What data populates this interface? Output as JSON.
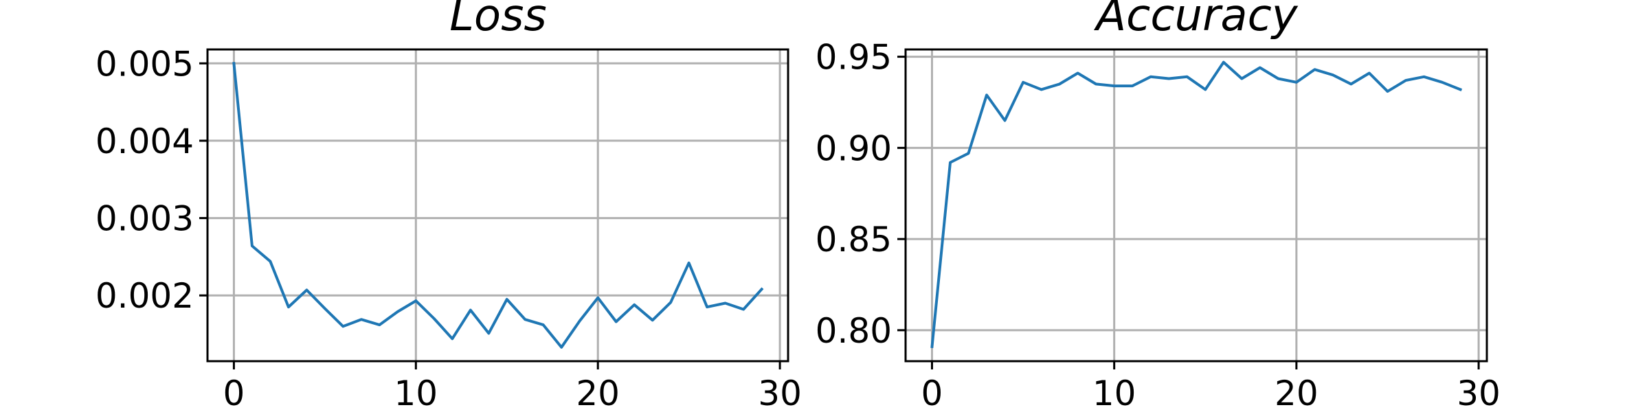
{
  "chart_data": [
    {
      "type": "line",
      "title": "Loss",
      "xlabel": "",
      "ylabel": "",
      "xlim": [
        -1.45,
        30.45
      ],
      "ylim": [
        0.00115,
        0.00518
      ],
      "xticks": [
        0,
        10,
        20,
        30
      ],
      "xtick_labels": [
        "0",
        "10",
        "20",
        "30"
      ],
      "yticks": [
        0.002,
        0.003,
        0.004,
        0.005
      ],
      "ytick_labels": [
        "0.002",
        "0.003",
        "0.004",
        "0.005"
      ],
      "grid": true,
      "series": [
        {
          "color": "#1f77b4",
          "x": [
            0,
            1,
            2,
            3,
            4,
            5,
            6,
            7,
            8,
            9,
            10,
            11,
            12,
            13,
            14,
            15,
            16,
            17,
            18,
            19,
            20,
            21,
            22,
            23,
            24,
            25,
            26,
            27,
            28,
            29
          ],
          "values": [
            0.005,
            0.00264,
            0.00244,
            0.00185,
            0.00207,
            0.00183,
            0.0016,
            0.00169,
            0.00162,
            0.00179,
            0.00193,
            0.0017,
            0.00144,
            0.00181,
            0.00151,
            0.00195,
            0.00169,
            0.00162,
            0.00133,
            0.00167,
            0.00197,
            0.00166,
            0.00188,
            0.00168,
            0.00191,
            0.00242,
            0.00185,
            0.0019,
            0.00182,
            0.00208
          ]
        }
      ]
    },
    {
      "type": "line",
      "title": "Accuracy",
      "xlabel": "",
      "ylabel": "",
      "xlim": [
        -1.45,
        30.45
      ],
      "ylim": [
        0.783,
        0.954
      ],
      "xticks": [
        0,
        10,
        20,
        30
      ],
      "xtick_labels": [
        "0",
        "10",
        "20",
        "30"
      ],
      "yticks": [
        0.8,
        0.85,
        0.9,
        0.95
      ],
      "ytick_labels": [
        "0.80",
        "0.85",
        "0.90",
        "0.95"
      ],
      "grid": true,
      "series": [
        {
          "color": "#1f77b4",
          "x": [
            0,
            1,
            2,
            3,
            4,
            5,
            6,
            7,
            8,
            9,
            10,
            11,
            12,
            13,
            14,
            15,
            16,
            17,
            18,
            19,
            20,
            21,
            22,
            23,
            24,
            25,
            26,
            27,
            28,
            29
          ],
          "values": [
            0.791,
            0.892,
            0.897,
            0.929,
            0.915,
            0.936,
            0.932,
            0.935,
            0.941,
            0.935,
            0.934,
            0.934,
            0.939,
            0.938,
            0.939,
            0.932,
            0.947,
            0.938,
            0.944,
            0.938,
            0.936,
            0.943,
            0.94,
            0.935,
            0.941,
            0.931,
            0.937,
            0.939,
            0.936,
            0.932
          ]
        }
      ]
    }
  ]
}
